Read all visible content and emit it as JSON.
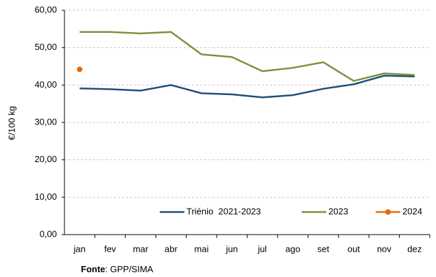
{
  "chart_data": {
    "type": "line",
    "y_label": "€/100 kg",
    "categories": [
      "jan",
      "fev",
      "mar",
      "abr",
      "mai",
      "jun",
      "jul",
      "ago",
      "set",
      "out",
      "nov",
      "dez"
    ],
    "series": [
      {
        "name": "Triénio  2021-2023",
        "color": "#1f4e79",
        "marker": false,
        "values": [
          39.1,
          38.9,
          38.5,
          40.0,
          37.8,
          37.5,
          36.7,
          37.3,
          39.0,
          40.2,
          42.5,
          42.3
        ]
      },
      {
        "name": "2023",
        "color": "#77933c",
        "marker": false,
        "values": [
          54.2,
          54.2,
          53.8,
          54.2,
          48.2,
          47.5,
          43.7,
          44.6,
          46.1,
          41.1,
          43.1,
          42.7
        ]
      },
      {
        "name": "2024",
        "color": "#e36c09",
        "marker": true,
        "values": [
          44.2,
          null,
          null,
          null,
          null,
          null,
          null,
          null,
          null,
          null,
          null,
          null
        ]
      }
    ],
    "ylim": [
      0,
      60
    ],
    "yticks": [
      {
        "value": 0,
        "label": "0,00"
      },
      {
        "value": 10,
        "label": "10,00"
      },
      {
        "value": 20,
        "label": "20,00"
      },
      {
        "value": 30,
        "label": "30,00"
      },
      {
        "value": 40,
        "label": "40,00"
      },
      {
        "value": 50,
        "label": "50,00"
      },
      {
        "value": 60,
        "label": "60,00"
      }
    ],
    "grid": true,
    "legend": "bottom-right",
    "source_label": "Fonte",
    "source_text": ": GPP/SIMA"
  }
}
